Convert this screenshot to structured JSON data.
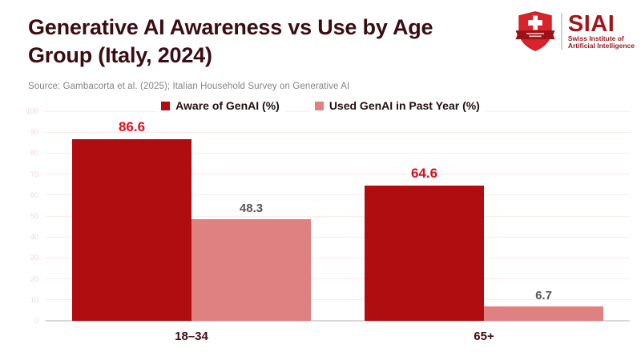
{
  "header": {
    "title": "Generative AI Awareness vs Use by Age Group (Italy, 2024)",
    "source": "Source: Gambacorta et al. (2025); Italian Household Survey on Generative AI"
  },
  "logo": {
    "wordmark": "SIAI",
    "tagline_line1": "Swiss Institute of",
    "tagline_line2": "Artificial Intelligence",
    "brand_red": "#a0181c",
    "shield_red": "#d8232a",
    "ribbon_red": "#9c1217"
  },
  "colors": {
    "title_maroon": "#3a0d12",
    "source_gray": "#848484",
    "aware_bar": "#b00d10",
    "used_bar": "#e08181",
    "aware_value_label": "#d8101e",
    "used_value_label": "#575757",
    "gridline_pink": "#fbeaea",
    "baseline_gray": "#d8d8d8",
    "ytick_pink": "#f5d6d6"
  },
  "chart_data": {
    "type": "bar",
    "title": "Generative AI Awareness vs Use by Age Group (Italy, 2024)",
    "categories": [
      "18–34",
      "65+"
    ],
    "series": [
      {
        "name": "Aware of GenAI (%)",
        "values": [
          86.6,
          64.6
        ],
        "color": "#b00d10",
        "label_color": "#d8101e"
      },
      {
        "name": "Used GenAI in Past Year (%)",
        "values": [
          48.3,
          6.7
        ],
        "color": "#e08181",
        "label_color": "#575757"
      }
    ],
    "xlabel": "",
    "ylabel": "",
    "ylim": [
      0,
      100
    ],
    "yticks": [
      0,
      10,
      20,
      30,
      40,
      50,
      60,
      70,
      80,
      90,
      100
    ],
    "grid": true,
    "legend_position": "top-center"
  }
}
